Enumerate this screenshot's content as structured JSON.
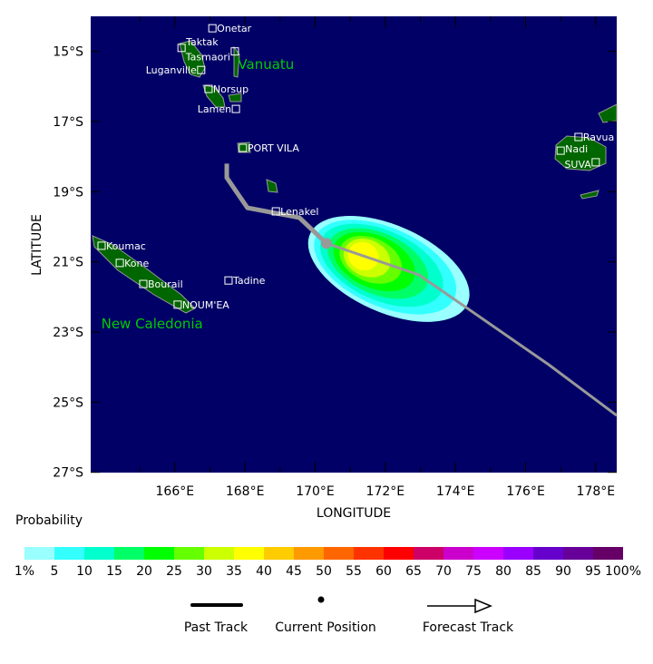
{
  "map": {
    "xlabel": "LONGITUDE",
    "ylabel": "LATITUDE",
    "lon_range": [
      163.6,
      178.6
    ],
    "lat_range": [
      -14,
      -27
    ],
    "lon_ticks": [
      "166°E",
      "168°E",
      "170°E",
      "172°E",
      "174°E",
      "176°E",
      "178°E"
    ],
    "lon_tick_values": [
      166,
      168,
      170,
      172,
      174,
      176,
      178
    ],
    "lat_ticks": [
      "15°S",
      "17°S",
      "19°S",
      "21°S",
      "23°S",
      "25°S",
      "27°S"
    ],
    "lat_tick_values": [
      -15,
      -17,
      -19,
      -21,
      -23,
      -25,
      -27
    ],
    "ocean_color": "#000066",
    "land_color": "#006600",
    "region_labels": [
      {
        "text": "Vanuatu",
        "lon": 167.8,
        "lat": -15.5
      },
      {
        "text": "New Caledonia",
        "lon": 163.9,
        "lat": -22.9
      }
    ],
    "cities": [
      {
        "name": "Onetar",
        "lon": 167.07,
        "lat": -14.34,
        "side": "right"
      },
      {
        "name": "Taktak",
        "lon": 166.19,
        "lat": -14.9,
        "side": "right"
      },
      {
        "name": "Tasmaori",
        "lon": 167.71,
        "lat": -15.0,
        "side": "left"
      },
      {
        "name": "Luganville",
        "lon": 166.75,
        "lat": -15.53,
        "side": "left"
      },
      {
        "name": "Norsup",
        "lon": 166.96,
        "lat": -16.07,
        "side": "right"
      },
      {
        "name": "Lamen",
        "lon": 167.74,
        "lat": -16.64,
        "side": "left"
      },
      {
        "name": "PORT VILA",
        "lon": 167.94,
        "lat": -17.75,
        "side": "right"
      },
      {
        "name": "Lenakel",
        "lon": 168.88,
        "lat": -19.56,
        "side": "right"
      },
      {
        "name": "Koumac",
        "lon": 163.91,
        "lat": -20.54,
        "side": "right"
      },
      {
        "name": "Kone",
        "lon": 164.43,
        "lat": -21.03,
        "side": "right"
      },
      {
        "name": "Bourail",
        "lon": 165.1,
        "lat": -21.63,
        "side": "right"
      },
      {
        "name": "Tadine",
        "lon": 167.53,
        "lat": -21.53,
        "side": "right"
      },
      {
        "name": "NOUM'EA",
        "lon": 166.08,
        "lat": -22.22,
        "side": "right"
      },
      {
        "name": "Ravua",
        "lon": 177.51,
        "lat": -17.44,
        "side": "right"
      },
      {
        "name": "Nadi",
        "lon": 177.0,
        "lat": -17.83,
        "side": "right"
      },
      {
        "name": "SUVA",
        "lon": 178.0,
        "lat": -18.16,
        "side": "left"
      }
    ],
    "past_track": [
      [
        167.48,
        -18.2
      ],
      [
        167.48,
        -18.6
      ],
      [
        168.07,
        -19.46
      ],
      [
        169.55,
        -19.74
      ],
      [
        170.32,
        -20.47
      ]
    ],
    "current_position": [
      170.32,
      -20.47
    ],
    "forecast_track": [
      [
        170.32,
        -20.47
      ],
      [
        172.96,
        -21.37
      ],
      [
        176.66,
        -23.93
      ],
      [
        178.6,
        -25.38
      ]
    ],
    "track_color": "#999999"
  },
  "legend": {
    "title": "Probability",
    "labels": [
      "1%",
      "5",
      "10",
      "15",
      "20",
      "25",
      "30",
      "35",
      "40",
      "45",
      "50",
      "55",
      "60",
      "65",
      "70",
      "75",
      "80",
      "85",
      "90",
      "95",
      "100%"
    ],
    "colors": [
      "#99ffff",
      "#33ffff",
      "#00ffcc",
      "#00ff66",
      "#00ff00",
      "#66ff00",
      "#ccff00",
      "#ffff00",
      "#ffcc00",
      "#ff9900",
      "#ff6600",
      "#ff3300",
      "#ff0000",
      "#cc0066",
      "#cc00cc",
      "#cc00ff",
      "#9900ff",
      "#6600cc",
      "#660099",
      "#660066"
    ],
    "past_label": "Past Track",
    "current_label": "Current Position",
    "forecast_label": "Forecast Track"
  }
}
